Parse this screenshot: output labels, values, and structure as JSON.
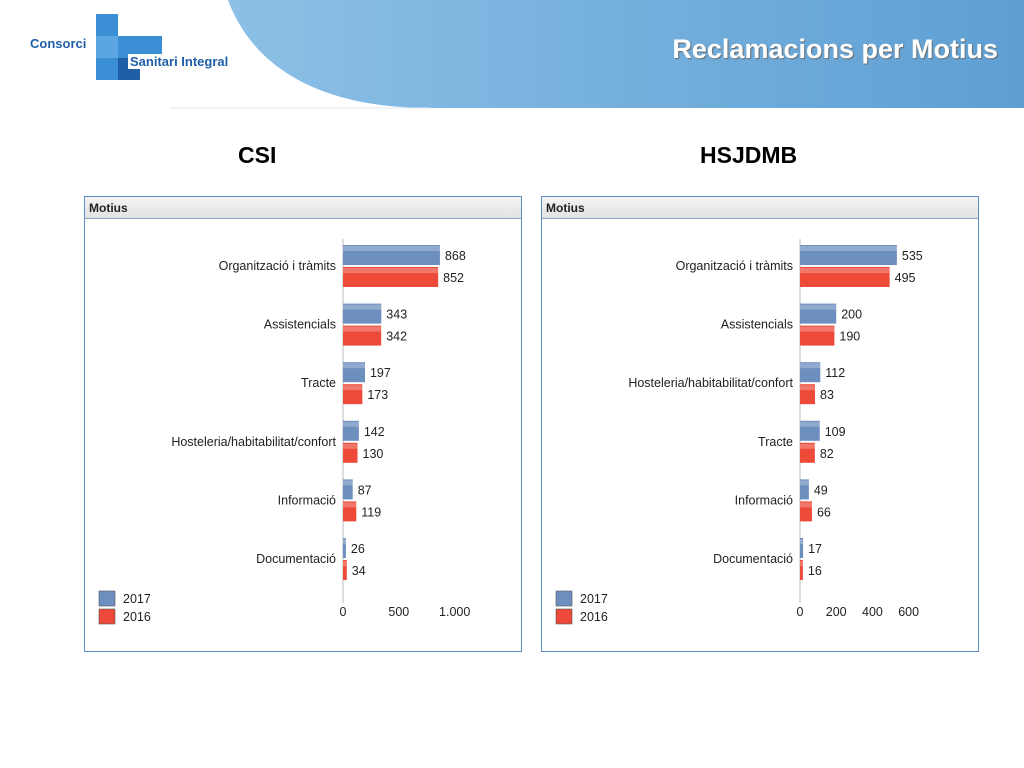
{
  "header": {
    "title": "Reclamacions per Motius",
    "logo_line1": "Consorci",
    "logo_line2": "Sanitari Integral"
  },
  "colors": {
    "series_2017": "#6c8fbf",
    "series_2016": "#ee4a3a",
    "header_band": "#6ba7d6"
  },
  "panels": [
    {
      "heading": "CSI",
      "box_title": "Motius"
    },
    {
      "heading": "HSJDMB",
      "box_title": "Motius"
    }
  ],
  "chart_data": [
    {
      "type": "bar",
      "orientation": "horizontal",
      "title": "Motius",
      "categories": [
        "Organització i tràmits",
        "Assistencials",
        "Tracte",
        "Hosteleria/habitabilitat/confort",
        "Informació",
        "Documentació"
      ],
      "series": [
        {
          "name": "2017",
          "values": [
            868,
            343,
            197,
            142,
            87,
            26
          ]
        },
        {
          "name": "2016",
          "values": [
            852,
            342,
            173,
            130,
            119,
            34
          ]
        }
      ],
      "xlim": [
        0,
        1200
      ],
      "xticks": [
        0,
        500,
        1000
      ],
      "xtick_labels": [
        "0",
        "500",
        "1.000"
      ],
      "legend": "bottom-left",
      "grid": false
    },
    {
      "type": "bar",
      "orientation": "horizontal",
      "title": "Motius",
      "categories": [
        "Organització i tràmits",
        "Assistencials",
        "Hosteleria/habitabilitat/confort",
        "Tracte",
        "Informació",
        "Documentació"
      ],
      "series": [
        {
          "name": "2017",
          "values": [
            535,
            200,
            112,
            109,
            49,
            17
          ]
        },
        {
          "name": "2016",
          "values": [
            495,
            190,
            83,
            82,
            66,
            16
          ]
        }
      ],
      "xlim": [
        0,
        740
      ],
      "xticks": [
        0,
        200,
        400,
        600
      ],
      "xtick_labels": [
        "0",
        "200",
        "400",
        "600"
      ],
      "legend": "bottom-left",
      "grid": false
    }
  ]
}
